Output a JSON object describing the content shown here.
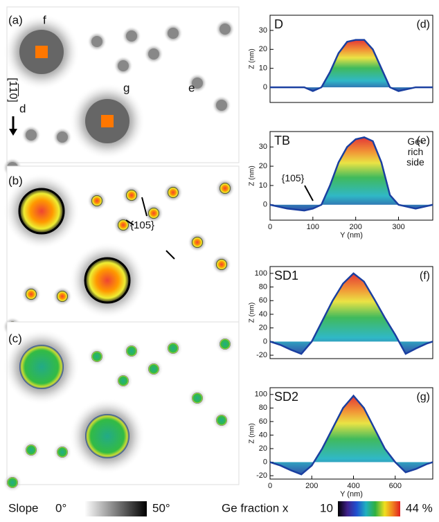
{
  "figure": {
    "left_panels": {
      "a": "(a)",
      "b": "(b)",
      "c": "(c)",
      "f": "f",
      "g": "g",
      "d": "d",
      "e": "e",
      "direction": "[1̅1̅0]",
      "facet": "{105}"
    },
    "colorbars": {
      "slope_label": "Slope",
      "slope_min": "0°",
      "slope_max": "50°",
      "ge_label": "Ge fraction x",
      "ge_min": "10",
      "ge_max": "44 %"
    }
  },
  "chart_data": [
    {
      "type": "area",
      "title": "D",
      "panel": "(d)",
      "ylabel": "Z (nm)",
      "x": [
        0,
        40,
        80,
        100,
        120,
        140,
        160,
        180,
        200,
        220,
        240,
        260,
        280,
        300,
        340,
        380
      ],
      "values": [
        0,
        0,
        0,
        -2,
        0,
        8,
        18,
        24,
        25,
        25,
        20,
        10,
        0,
        -2,
        0,
        0
      ],
      "xlim": [
        0,
        380
      ],
      "ylim": [
        -8,
        38
      ],
      "yticks": [
        0,
        10,
        20,
        30
      ]
    },
    {
      "type": "area",
      "title": "TB",
      "panel": "(e)",
      "ylabel": "Z (nm)",
      "xlabel": "Y (nm)",
      "annotations": [
        "Ge-rich side",
        "{105}"
      ],
      "x": [
        0,
        40,
        80,
        100,
        120,
        140,
        160,
        180,
        200,
        220,
        240,
        260,
        280,
        300,
        340,
        380
      ],
      "values": [
        0,
        -2,
        -3,
        -2,
        0,
        10,
        22,
        30,
        34,
        35,
        33,
        22,
        5,
        0,
        -2,
        0
      ],
      "xlim": [
        0,
        380
      ],
      "ylim": [
        -8,
        38
      ],
      "yticks": [
        0,
        10,
        20,
        30
      ],
      "xticks": [
        0,
        100,
        200,
        300
      ]
    },
    {
      "type": "area",
      "title": "SD1",
      "panel": "(f)",
      "ylabel": "Z (nm)",
      "x": [
        0,
        50,
        100,
        150,
        200,
        250,
        300,
        350,
        400,
        450,
        500,
        550,
        600,
        650,
        700,
        750,
        780
      ],
      "values": [
        0,
        -5,
        -12,
        -18,
        0,
        30,
        60,
        85,
        100,
        88,
        62,
        35,
        10,
        -18,
        -10,
        -3,
        0
      ],
      "xlim": [
        0,
        780
      ],
      "ylim": [
        -25,
        110
      ],
      "yticks": [
        -20,
        0,
        20,
        40,
        60,
        80,
        100
      ]
    },
    {
      "type": "area",
      "title": "SD2",
      "panel": "(g)",
      "ylabel": "Z (nm)",
      "xlabel": "Y (nm)",
      "x": [
        0,
        50,
        100,
        150,
        200,
        250,
        300,
        350,
        400,
        450,
        500,
        550,
        600,
        650,
        700,
        750,
        780
      ],
      "values": [
        0,
        -5,
        -12,
        -18,
        -5,
        20,
        50,
        80,
        98,
        80,
        50,
        20,
        0,
        -15,
        -10,
        -3,
        0
      ],
      "xlim": [
        0,
        780
      ],
      "ylim": [
        -25,
        110
      ],
      "yticks": [
        -20,
        0,
        20,
        40,
        60,
        80,
        100
      ],
      "xticks": [
        0,
        200,
        400,
        600
      ]
    }
  ]
}
